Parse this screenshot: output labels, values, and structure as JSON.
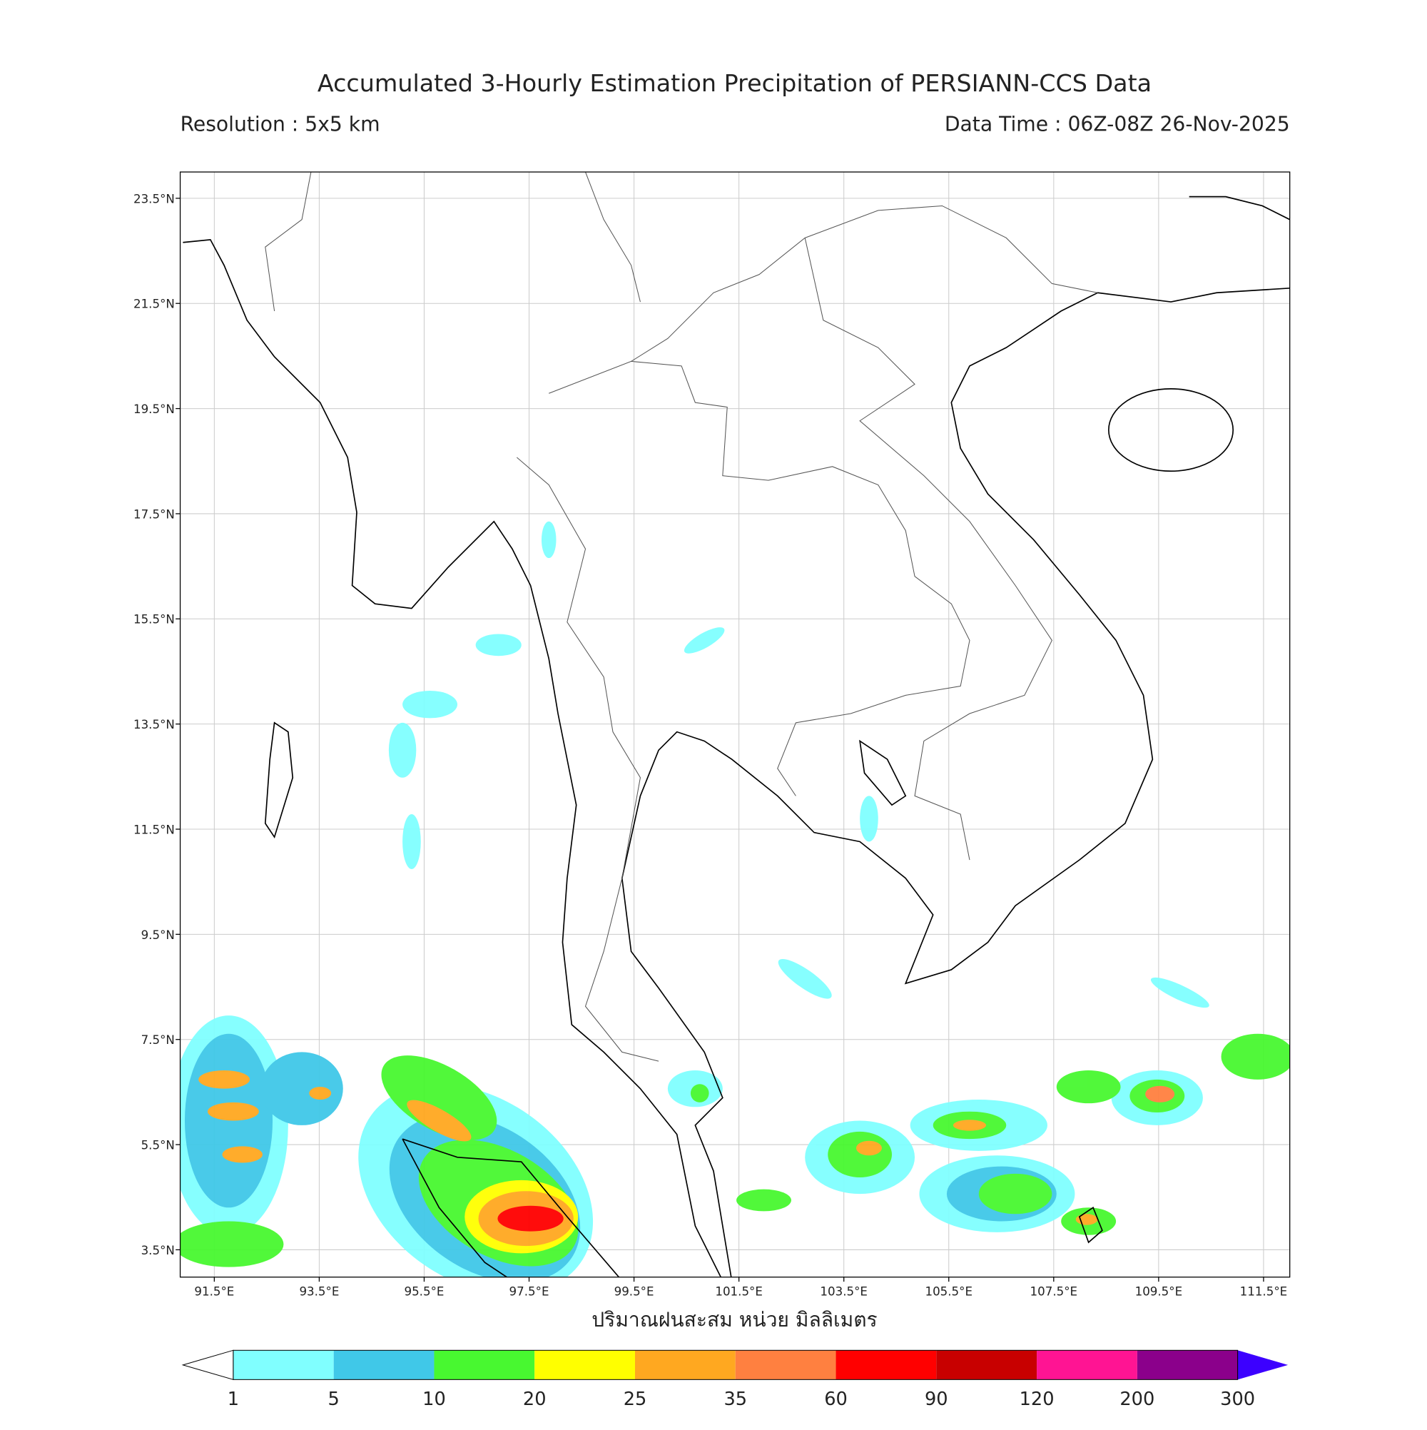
{
  "title": "Accumulated 3-Hourly Estimation Precipitation of PERSIANN-CCS Data",
  "resolution": "Resolution : 5x5 km",
  "data_time": "Data Time : 06Z-08Z 26-Nov-2025",
  "map": {
    "lonlim": [
      90.85,
      112.0
    ],
    "latlim": [
      2.98,
      24.0
    ],
    "grid": true,
    "lonticks": [
      {
        "value": 91.5,
        "label": "91.5°E"
      },
      {
        "value": 93.5,
        "label": "93.5°E"
      },
      {
        "value": 95.5,
        "label": "95.5°E"
      },
      {
        "value": 97.5,
        "label": "97.5°E"
      },
      {
        "value": 99.5,
        "label": "99.5°E"
      },
      {
        "value": 101.5,
        "label": "101.5°E"
      },
      {
        "value": 103.5,
        "label": "103.5°E"
      },
      {
        "value": 105.5,
        "label": "105.5°E"
      },
      {
        "value": 107.5,
        "label": "107.5°E"
      },
      {
        "value": 109.5,
        "label": "109.5°E"
      },
      {
        "value": 111.5,
        "label": "111.5°E"
      }
    ],
    "latticks": [
      {
        "value": 3.5,
        "label": "3.5°N"
      },
      {
        "value": 5.5,
        "label": "5.5°N"
      },
      {
        "value": 7.5,
        "label": "7.5°N"
      },
      {
        "value": 9.5,
        "label": "9.5°N"
      },
      {
        "value": 11.5,
        "label": "11.5°N"
      },
      {
        "value": 13.5,
        "label": "13.5°N"
      },
      {
        "value": 15.5,
        "label": "15.5°N"
      },
      {
        "value": 17.5,
        "label": "17.5°N"
      },
      {
        "value": 19.5,
        "label": "19.5°N"
      },
      {
        "value": 21.5,
        "label": "21.5°N"
      },
      {
        "value": 23.5,
        "label": "23.5°N"
      }
    ]
  },
  "colorbar": {
    "label": "ปริมาณฝนสะสม หน่วย มิลลิเมตร",
    "levels": [
      1,
      5,
      10,
      20,
      25,
      35,
      60,
      90,
      120,
      200,
      300
    ],
    "colors": [
      "#80ffff",
      "#40c8e8",
      "#48f830",
      "#ffff00",
      "#ffa820",
      "#ff8040",
      "#ff0000",
      "#c80000",
      "#ff1493",
      "#8b008b"
    ],
    "under_color": "#ffffff",
    "over_color": "#3c00ff"
  }
}
